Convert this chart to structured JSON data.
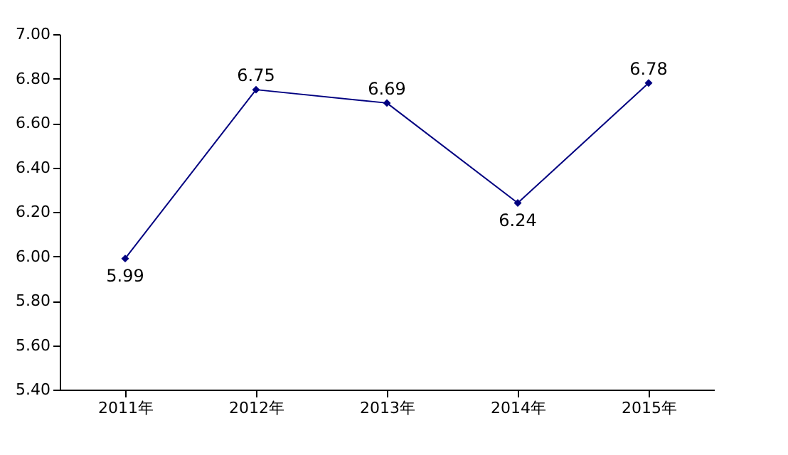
{
  "chart_data": {
    "type": "line",
    "categories": [
      "2011年",
      "2012年",
      "2013年",
      "2014年",
      "2015年"
    ],
    "series": [
      {
        "color": "#000080",
        "values": [
          5.99,
          6.75,
          6.69,
          6.24,
          6.78
        ]
      }
    ],
    "ylim": [
      5.4,
      7.0
    ],
    "yticks": [
      {
        "value": 5.4,
        "label": "5.40"
      },
      {
        "value": 5.6,
        "label": "5.60"
      },
      {
        "value": 5.8,
        "label": "5.80"
      },
      {
        "value": 6.0,
        "label": "6.00"
      },
      {
        "value": 6.2,
        "label": "6.20"
      },
      {
        "value": 6.4,
        "label": "6.40"
      },
      {
        "value": 6.6,
        "label": "6.60"
      },
      {
        "value": 6.8,
        "label": "6.80"
      },
      {
        "value": 7.0,
        "label": "7.00"
      }
    ],
    "marker": "diamond",
    "line_style": "solid",
    "grid": false,
    "data_labels": true
  }
}
